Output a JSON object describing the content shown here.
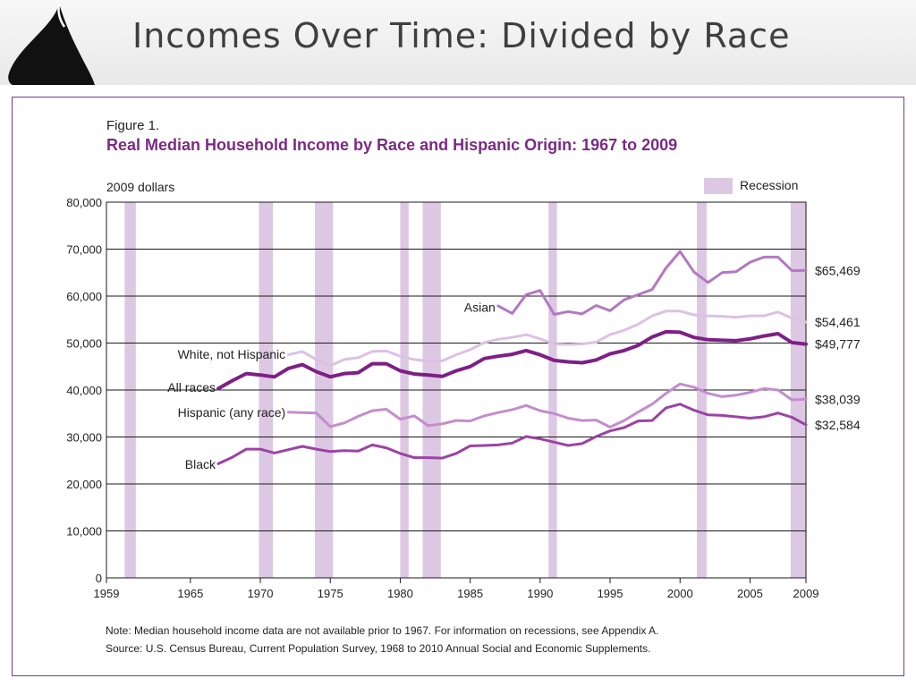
{
  "slide": {
    "title": "Incomes Over Time: Divided by Race"
  },
  "colors": {
    "accent": "#7b2a83",
    "recession": "#dcc8e2",
    "asian": "#b378c1",
    "white_not_hispanic": "#dcc1e3",
    "all_races": "#7e1f86",
    "hispanic": "#c48ccd",
    "black": "#9c43a5"
  },
  "figure": {
    "label": "Figure 1.",
    "title": "Real Median Household Income by Race and Hispanic Origin: 1967 to 2009",
    "unit_label": "2009 dollars",
    "legend": {
      "recession_label": "Recession"
    },
    "note": "Note:  Median household income data are not available prior to 1967.  For information on recessions, see Appendix A.",
    "source": "Source:  U.S. Census Bureau, Current Population Survey, 1968 to 2010 Annual Social and Economic Supplements."
  },
  "chart_data": {
    "type": "line",
    "title": "Real Median Household Income by Race and Hispanic Origin: 1967 to 2009",
    "ylabel": "2009 dollars",
    "xlabel": "",
    "xlim": [
      1959,
      2009
    ],
    "ylim": [
      0,
      80000
    ],
    "x_ticks": [
      1959,
      1965,
      1970,
      1975,
      1980,
      1985,
      1990,
      1995,
      2000,
      2005,
      2009
    ],
    "x_tick_labels": [
      "1959",
      "1965",
      "1970",
      "1975",
      "1980",
      "1985",
      "1990",
      "1995",
      "2000",
      "2005",
      "2009"
    ],
    "y_ticks": [
      0,
      10000,
      20000,
      30000,
      40000,
      50000,
      60000,
      70000,
      80000
    ],
    "y_tick_labels": [
      "0",
      "10,000",
      "20,000",
      "30,000",
      "40,000",
      "50,000",
      "60,000",
      "70,000",
      "80,000"
    ],
    "grid": "horizontal",
    "legend": "top-right",
    "recessions": [
      [
        1960.3,
        1961.1
      ],
      [
        1969.9,
        1970.9
      ],
      [
        1973.9,
        1975.2
      ],
      [
        1980.0,
        1980.6
      ],
      [
        1981.6,
        1982.9
      ],
      [
        1990.6,
        1991.2
      ],
      [
        2001.2,
        2001.9
      ],
      [
        2007.9,
        2009.5
      ]
    ],
    "series": [
      {
        "name": "Asian",
        "end_label": "$65,469",
        "color_key": "asian",
        "width": 3,
        "points": [
          [
            1987,
            57900
          ],
          [
            1988,
            56300
          ],
          [
            1989,
            60300
          ],
          [
            1990,
            61200
          ],
          [
            1991,
            56100
          ],
          [
            1992,
            56700
          ],
          [
            1993,
            56200
          ],
          [
            1994,
            58000
          ],
          [
            1995,
            56900
          ],
          [
            1996,
            59200
          ],
          [
            1997,
            60300
          ],
          [
            1998,
            61400
          ],
          [
            1999,
            66000
          ],
          [
            2000,
            69500
          ],
          [
            2001,
            65100
          ],
          [
            2002,
            62900
          ],
          [
            2003,
            65000
          ],
          [
            2004,
            65200
          ],
          [
            2005,
            67200
          ],
          [
            2006,
            68300
          ],
          [
            2007,
            68300
          ],
          [
            2008,
            65400
          ],
          [
            2009,
            65469
          ]
        ]
      },
      {
        "name": "White, not Hispanic",
        "end_label": "$54,461",
        "color_key": "white_not_hispanic",
        "width": 3,
        "points": [
          [
            1972,
            47500
          ],
          [
            1973,
            48200
          ],
          [
            1974,
            46500
          ],
          [
            1975,
            45200
          ],
          [
            1976,
            46500
          ],
          [
            1977,
            46900
          ],
          [
            1978,
            48200
          ],
          [
            1979,
            48300
          ],
          [
            1980,
            47200
          ],
          [
            1981,
            46500
          ],
          [
            1982,
            46100
          ],
          [
            1983,
            46200
          ],
          [
            1984,
            47500
          ],
          [
            1985,
            48600
          ],
          [
            1986,
            50100
          ],
          [
            1987,
            50800
          ],
          [
            1988,
            51200
          ],
          [
            1989,
            51800
          ],
          [
            1990,
            50900
          ],
          [
            1991,
            49800
          ],
          [
            1992,
            49700
          ],
          [
            1993,
            49800
          ],
          [
            1994,
            50200
          ],
          [
            1995,
            51800
          ],
          [
            1996,
            52700
          ],
          [
            1997,
            54000
          ],
          [
            1998,
            55800
          ],
          [
            1999,
            56800
          ],
          [
            2000,
            56800
          ],
          [
            2001,
            56000
          ],
          [
            2002,
            55800
          ],
          [
            2003,
            55700
          ],
          [
            2004,
            55500
          ],
          [
            2005,
            55800
          ],
          [
            2006,
            55800
          ],
          [
            2007,
            56600
          ],
          [
            2008,
            55300
          ],
          [
            2009,
            54461
          ]
        ]
      },
      {
        "name": "All races",
        "end_label": "$49,777",
        "color_key": "all_races",
        "width": 4,
        "points": [
          [
            1967,
            40300
          ],
          [
            1968,
            42000
          ],
          [
            1969,
            43500
          ],
          [
            1970,
            43200
          ],
          [
            1971,
            42800
          ],
          [
            1972,
            44600
          ],
          [
            1973,
            45400
          ],
          [
            1974,
            43900
          ],
          [
            1975,
            42800
          ],
          [
            1976,
            43500
          ],
          [
            1977,
            43700
          ],
          [
            1978,
            45600
          ],
          [
            1979,
            45600
          ],
          [
            1980,
            44100
          ],
          [
            1981,
            43400
          ],
          [
            1982,
            43200
          ],
          [
            1983,
            42900
          ],
          [
            1984,
            44100
          ],
          [
            1985,
            45000
          ],
          [
            1986,
            46700
          ],
          [
            1987,
            47200
          ],
          [
            1988,
            47600
          ],
          [
            1989,
            48400
          ],
          [
            1990,
            47500
          ],
          [
            1991,
            46300
          ],
          [
            1992,
            46000
          ],
          [
            1993,
            45800
          ],
          [
            1994,
            46400
          ],
          [
            1995,
            47700
          ],
          [
            1996,
            48400
          ],
          [
            1997,
            49500
          ],
          [
            1998,
            51300
          ],
          [
            1999,
            52400
          ],
          [
            2000,
            52300
          ],
          [
            2001,
            51200
          ],
          [
            2002,
            50700
          ],
          [
            2003,
            50600
          ],
          [
            2004,
            50500
          ],
          [
            2005,
            50900
          ],
          [
            2006,
            51500
          ],
          [
            2007,
            52000
          ],
          [
            2008,
            50100
          ],
          [
            2009,
            49777
          ]
        ]
      },
      {
        "name": "Hispanic (any race)",
        "end_label": "$38,039",
        "color_key": "hispanic",
        "width": 3,
        "points": [
          [
            1972,
            35300
          ],
          [
            1973,
            35200
          ],
          [
            1974,
            35100
          ],
          [
            1975,
            32200
          ],
          [
            1976,
            33000
          ],
          [
            1977,
            34400
          ],
          [
            1978,
            35600
          ],
          [
            1979,
            35900
          ],
          [
            1980,
            33800
          ],
          [
            1981,
            34500
          ],
          [
            1982,
            32400
          ],
          [
            1983,
            32800
          ],
          [
            1984,
            33500
          ],
          [
            1985,
            33400
          ],
          [
            1986,
            34500
          ],
          [
            1987,
            35200
          ],
          [
            1988,
            35800
          ],
          [
            1989,
            36700
          ],
          [
            1990,
            35600
          ],
          [
            1991,
            35000
          ],
          [
            1992,
            34000
          ],
          [
            1993,
            33500
          ],
          [
            1994,
            33600
          ],
          [
            1995,
            32100
          ],
          [
            1996,
            33500
          ],
          [
            1997,
            35300
          ],
          [
            1998,
            37000
          ],
          [
            1999,
            39300
          ],
          [
            2000,
            41300
          ],
          [
            2001,
            40600
          ],
          [
            2002,
            39300
          ],
          [
            2003,
            38600
          ],
          [
            2004,
            38900
          ],
          [
            2005,
            39500
          ],
          [
            2006,
            40300
          ],
          [
            2007,
            40000
          ],
          [
            2008,
            37900
          ],
          [
            2009,
            38039
          ]
        ]
      },
      {
        "name": "Black",
        "end_label": "$32,584",
        "color_key": "black",
        "width": 3,
        "points": [
          [
            1967,
            24300
          ],
          [
            1968,
            25700
          ],
          [
            1969,
            27400
          ],
          [
            1970,
            27400
          ],
          [
            1971,
            26600
          ],
          [
            1972,
            27300
          ],
          [
            1973,
            28000
          ],
          [
            1974,
            27400
          ],
          [
            1975,
            26900
          ],
          [
            1976,
            27100
          ],
          [
            1977,
            27000
          ],
          [
            1978,
            28300
          ],
          [
            1979,
            27700
          ],
          [
            1980,
            26500
          ],
          [
            1981,
            25600
          ],
          [
            1982,
            25600
          ],
          [
            1983,
            25500
          ],
          [
            1984,
            26500
          ],
          [
            1985,
            28100
          ],
          [
            1986,
            28200
          ],
          [
            1987,
            28300
          ],
          [
            1988,
            28700
          ],
          [
            1989,
            30100
          ],
          [
            1990,
            29600
          ],
          [
            1991,
            28900
          ],
          [
            1992,
            28200
          ],
          [
            1993,
            28600
          ],
          [
            1994,
            30100
          ],
          [
            1995,
            31300
          ],
          [
            1996,
            32000
          ],
          [
            1997,
            33400
          ],
          [
            1998,
            33500
          ],
          [
            1999,
            36200
          ],
          [
            2000,
            37000
          ],
          [
            2001,
            35700
          ],
          [
            2002,
            34700
          ],
          [
            2003,
            34600
          ],
          [
            2004,
            34300
          ],
          [
            2005,
            34000
          ],
          [
            2006,
            34300
          ],
          [
            2007,
            35100
          ],
          [
            2008,
            34200
          ],
          [
            2009,
            32584
          ]
        ]
      }
    ]
  }
}
